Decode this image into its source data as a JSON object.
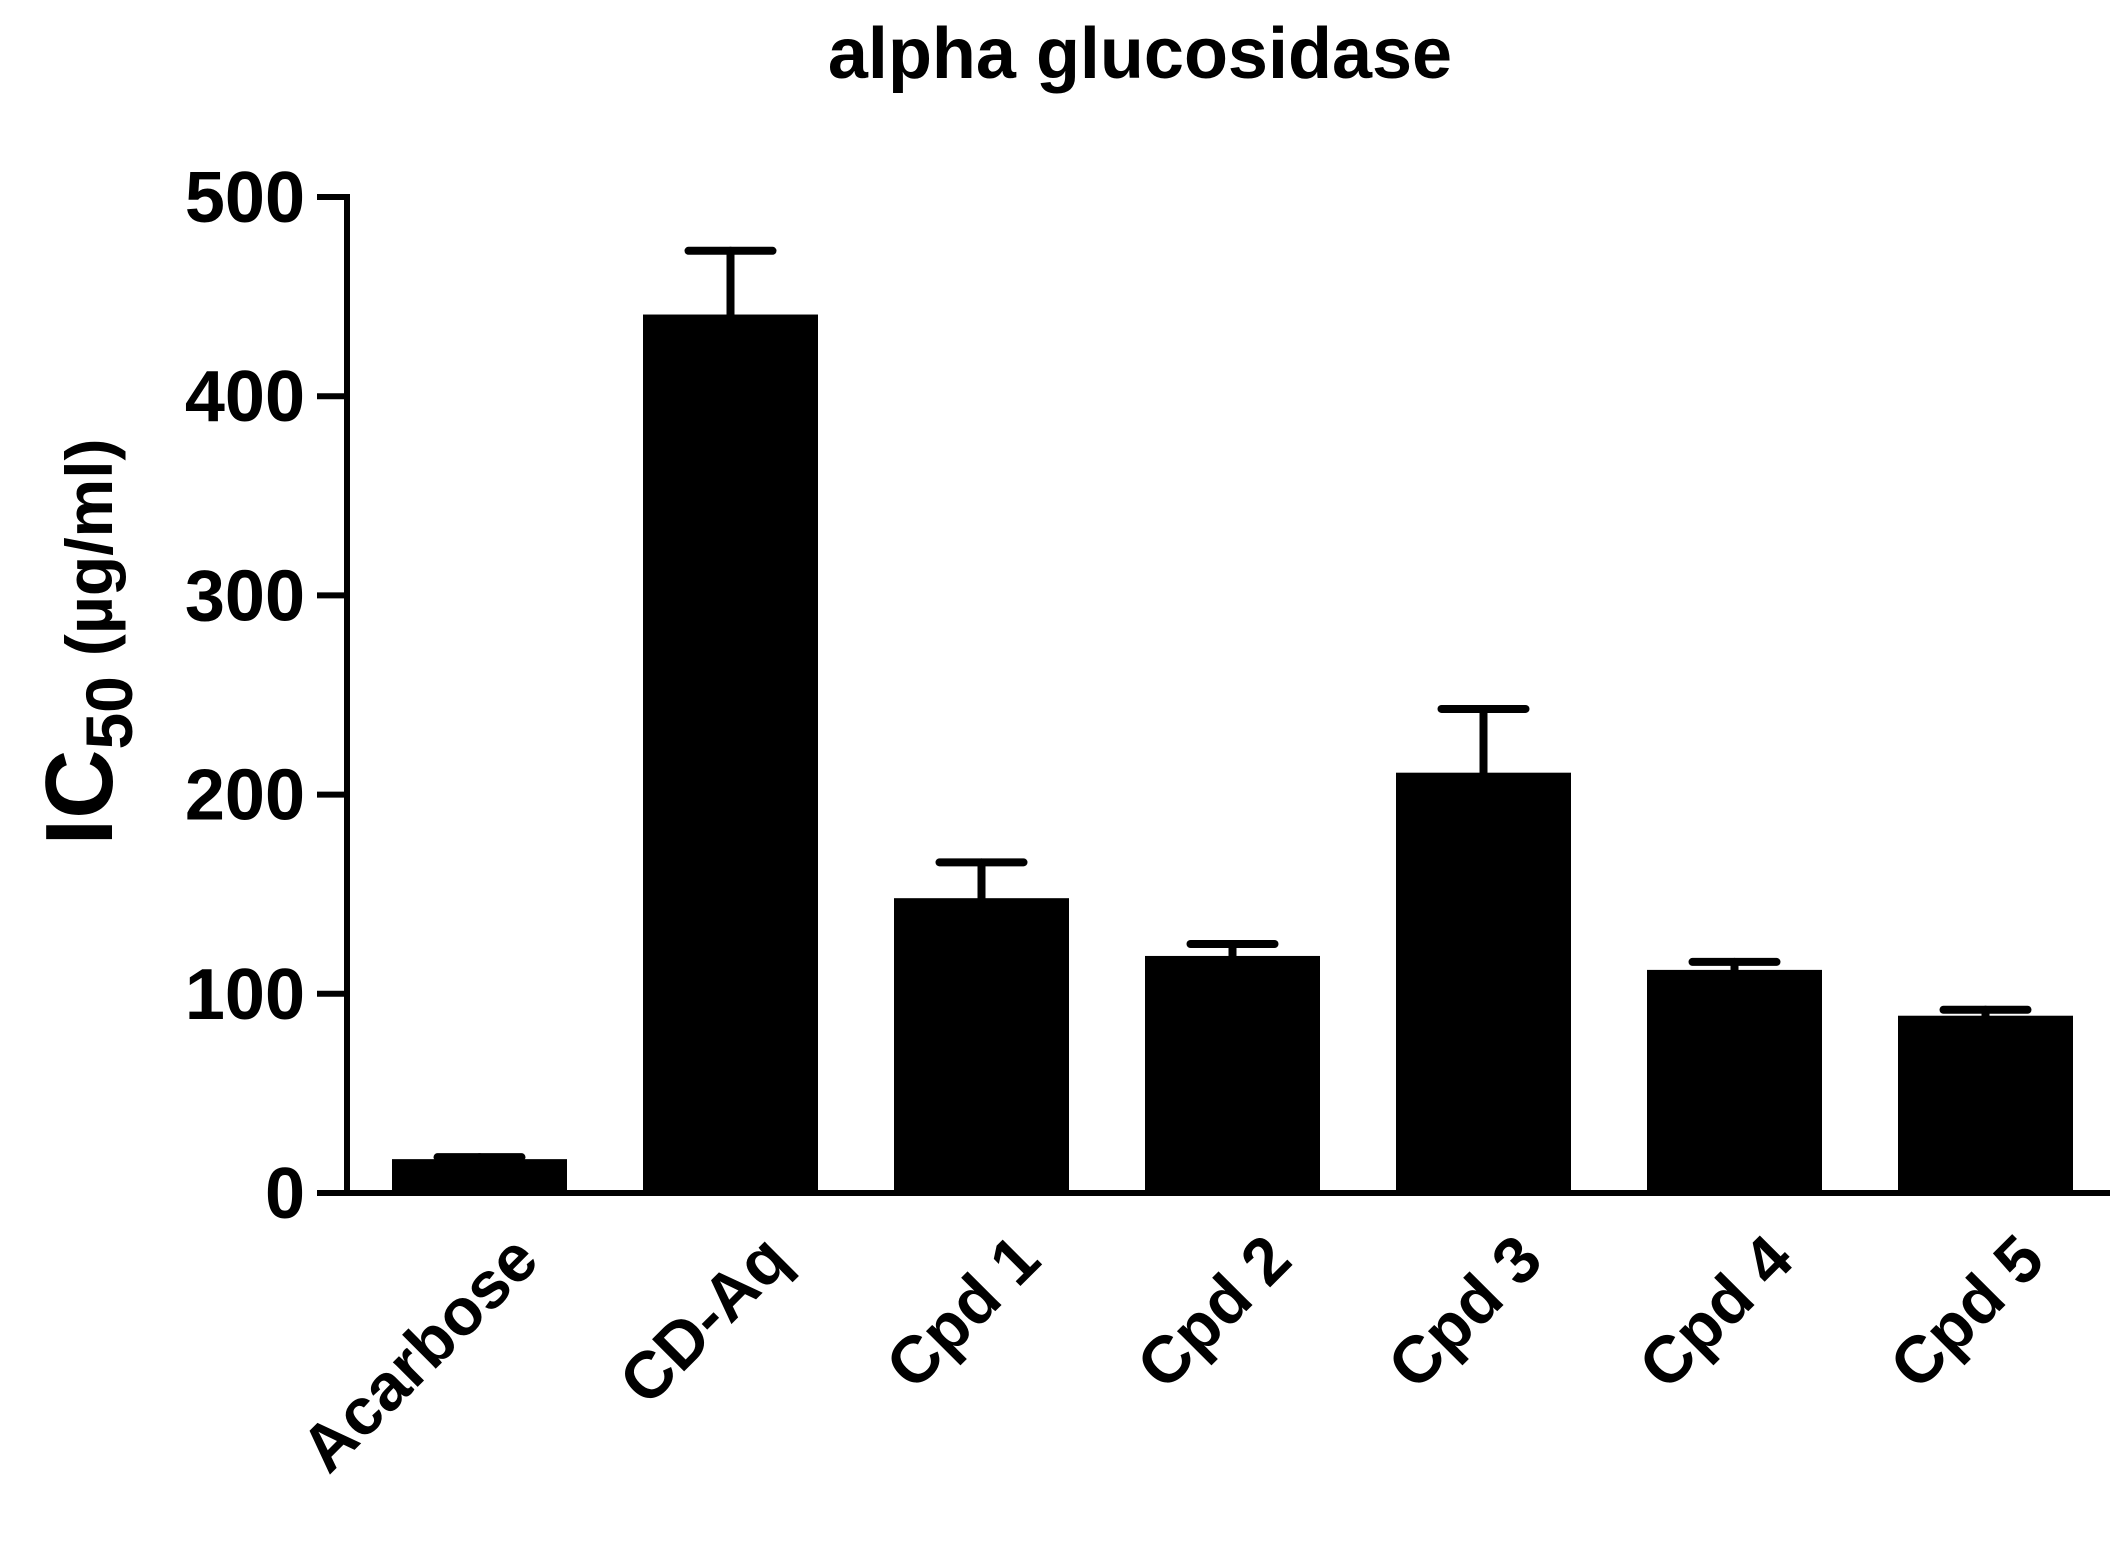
{
  "chart_data": {
    "type": "bar",
    "title": "alpha glucosidase",
    "ylabel": {
      "main": "IC",
      "subscript": "50",
      "unit": "(µg/ml)"
    },
    "xlabel": "",
    "ylim": [
      0,
      500
    ],
    "yticks": [
      0,
      100,
      200,
      300,
      400,
      500
    ],
    "categories": [
      "Acarbose",
      "CD-Aq",
      "Cpd 1",
      "Cpd 2",
      "Cpd 3",
      "Cpd 4",
      "Cpd 5"
    ],
    "values": [
      17,
      441,
      148,
      119,
      211,
      112,
      89
    ],
    "errors": [
      1,
      32,
      18,
      6,
      32,
      4,
      3
    ],
    "bar_color": "#000000",
    "grid": false,
    "legend": false
  }
}
